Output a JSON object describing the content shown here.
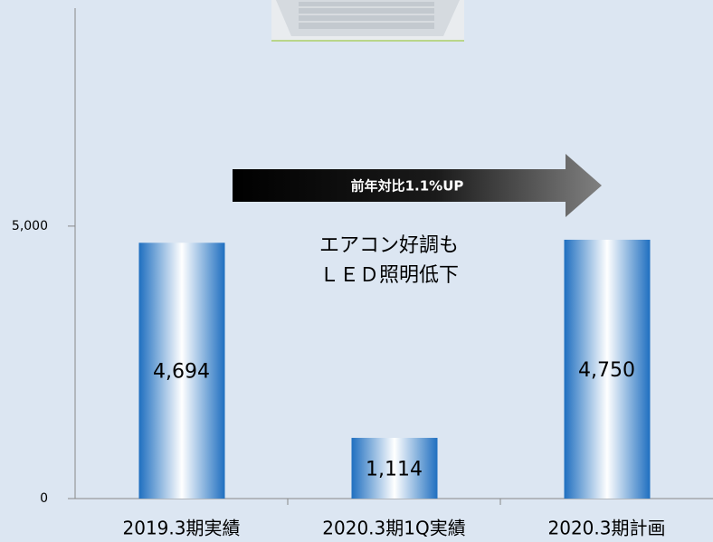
{
  "chart_data": {
    "type": "bar",
    "categories": [
      "2019.3期実績",
      "2020.3期1Q実績",
      "2020.3期計画"
    ],
    "values": [
      4694,
      1114,
      4750
    ],
    "value_labels": [
      "4,694",
      "1,114",
      "4,750"
    ],
    "color": "#1f6fc0",
    "ylim": [
      0,
      9000
    ],
    "yticks": [
      0,
      {
        "value": 5000,
        "label": "5,000"
      }
    ],
    "grid": false,
    "annotations": {
      "arrow": "前年対比1.1%UP",
      "line1": "エアコン好調も",
      "line2": "ＬＥＤ照明低下"
    }
  }
}
